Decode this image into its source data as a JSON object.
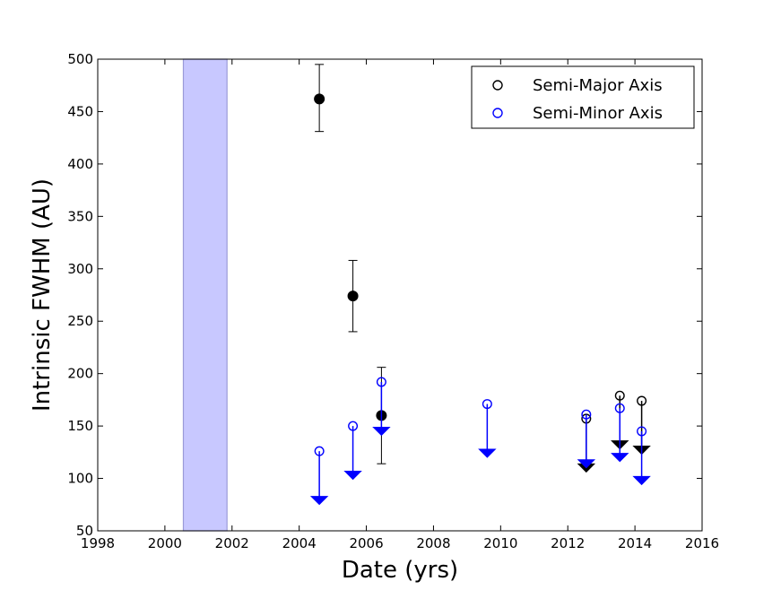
{
  "chart_data": {
    "type": "scatter",
    "xlabel": "Date (yrs)",
    "ylabel": "Intrinsic FWHM (AU)",
    "xlim": [
      1998,
      2016
    ],
    "ylim": [
      50,
      500
    ],
    "xticks": [
      1998,
      2000,
      2002,
      2004,
      2006,
      2008,
      2010,
      2012,
      2014,
      2016
    ],
    "yticks": [
      50,
      100,
      150,
      200,
      250,
      300,
      350,
      400,
      450,
      500
    ],
    "grid": false,
    "legend_position": "top-right",
    "shaded_region": {
      "x": [
        2000.55,
        2001.85
      ],
      "color": "#c8c8ff"
    },
    "series": [
      {
        "name": "Semi-Major Axis",
        "color": "#000000",
        "legend_marker": "open-circle",
        "detections": [
          {
            "x": 2004.6,
            "y": 462,
            "yerr_low": 31,
            "yerr_high": 33
          },
          {
            "x": 2005.6,
            "y": 274,
            "yerr_low": 34,
            "yerr_high": 34
          },
          {
            "x": 2006.45,
            "y": 160,
            "yerr_low": 46,
            "yerr_high": 46
          }
        ],
        "upper_limits": [
          {
            "x": 2012.55,
            "y_top": 157,
            "y_limit": 110
          },
          {
            "x": 2013.55,
            "y_top": 179,
            "y_limit": 132
          },
          {
            "x": 2014.2,
            "y_top": 174,
            "y_limit": 127
          }
        ]
      },
      {
        "name": "Semi-Minor Axis",
        "color": "#0000ff",
        "legend_marker": "open-circle",
        "detections": [],
        "upper_limits": [
          {
            "x": 2004.6,
            "y_top": 126,
            "y_limit": 79
          },
          {
            "x": 2005.6,
            "y_top": 150,
            "y_limit": 103
          },
          {
            "x": 2006.45,
            "y_top": 192,
            "y_limit": 145
          },
          {
            "x": 2009.6,
            "y_top": 171,
            "y_limit": 124
          },
          {
            "x": 2012.55,
            "y_top": 161,
            "y_limit": 114
          },
          {
            "x": 2013.55,
            "y_top": 167,
            "y_limit": 120
          },
          {
            "x": 2014.2,
            "y_top": 145,
            "y_limit": 98
          }
        ]
      }
    ]
  }
}
